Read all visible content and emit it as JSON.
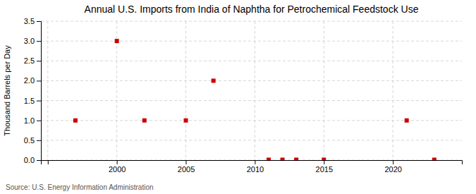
{
  "chart_data": {
    "type": "scatter",
    "title": "Annual U.S. Imports from India of Naphtha for Petrochemical Feedstock Use",
    "ylabel": "Thousand Barrels per Day",
    "annotations": [
      "Source: U.S. Energy Information Administration"
    ],
    "x": [
      1997,
      2000,
      2002,
      2005,
      2007,
      2011,
      2012,
      2013,
      2015,
      2021,
      2023
    ],
    "values": [
      1.0,
      3.0,
      1.0,
      1.0,
      2.0,
      0.01,
      0.01,
      0.01,
      0.01,
      1.0,
      0.01
    ],
    "color": "#cc0000",
    "marker": "square",
    "xlim": [
      1994.5,
      2025
    ],
    "ylim": [
      0,
      3.5
    ],
    "xticks": [
      {
        "value": 1995,
        "label": null
      },
      2000,
      2005,
      2010,
      2015,
      2020
    ],
    "yticks": [
      {
        "value": 0.0,
        "label": "0.0"
      },
      0.5,
      {
        "value": 1.0,
        "label": "1.0"
      },
      1.5,
      {
        "value": 2.0,
        "label": "2.0"
      },
      2.5,
      {
        "value": 3.0,
        "label": "3.0"
      },
      3.5
    ],
    "grid": true
  }
}
